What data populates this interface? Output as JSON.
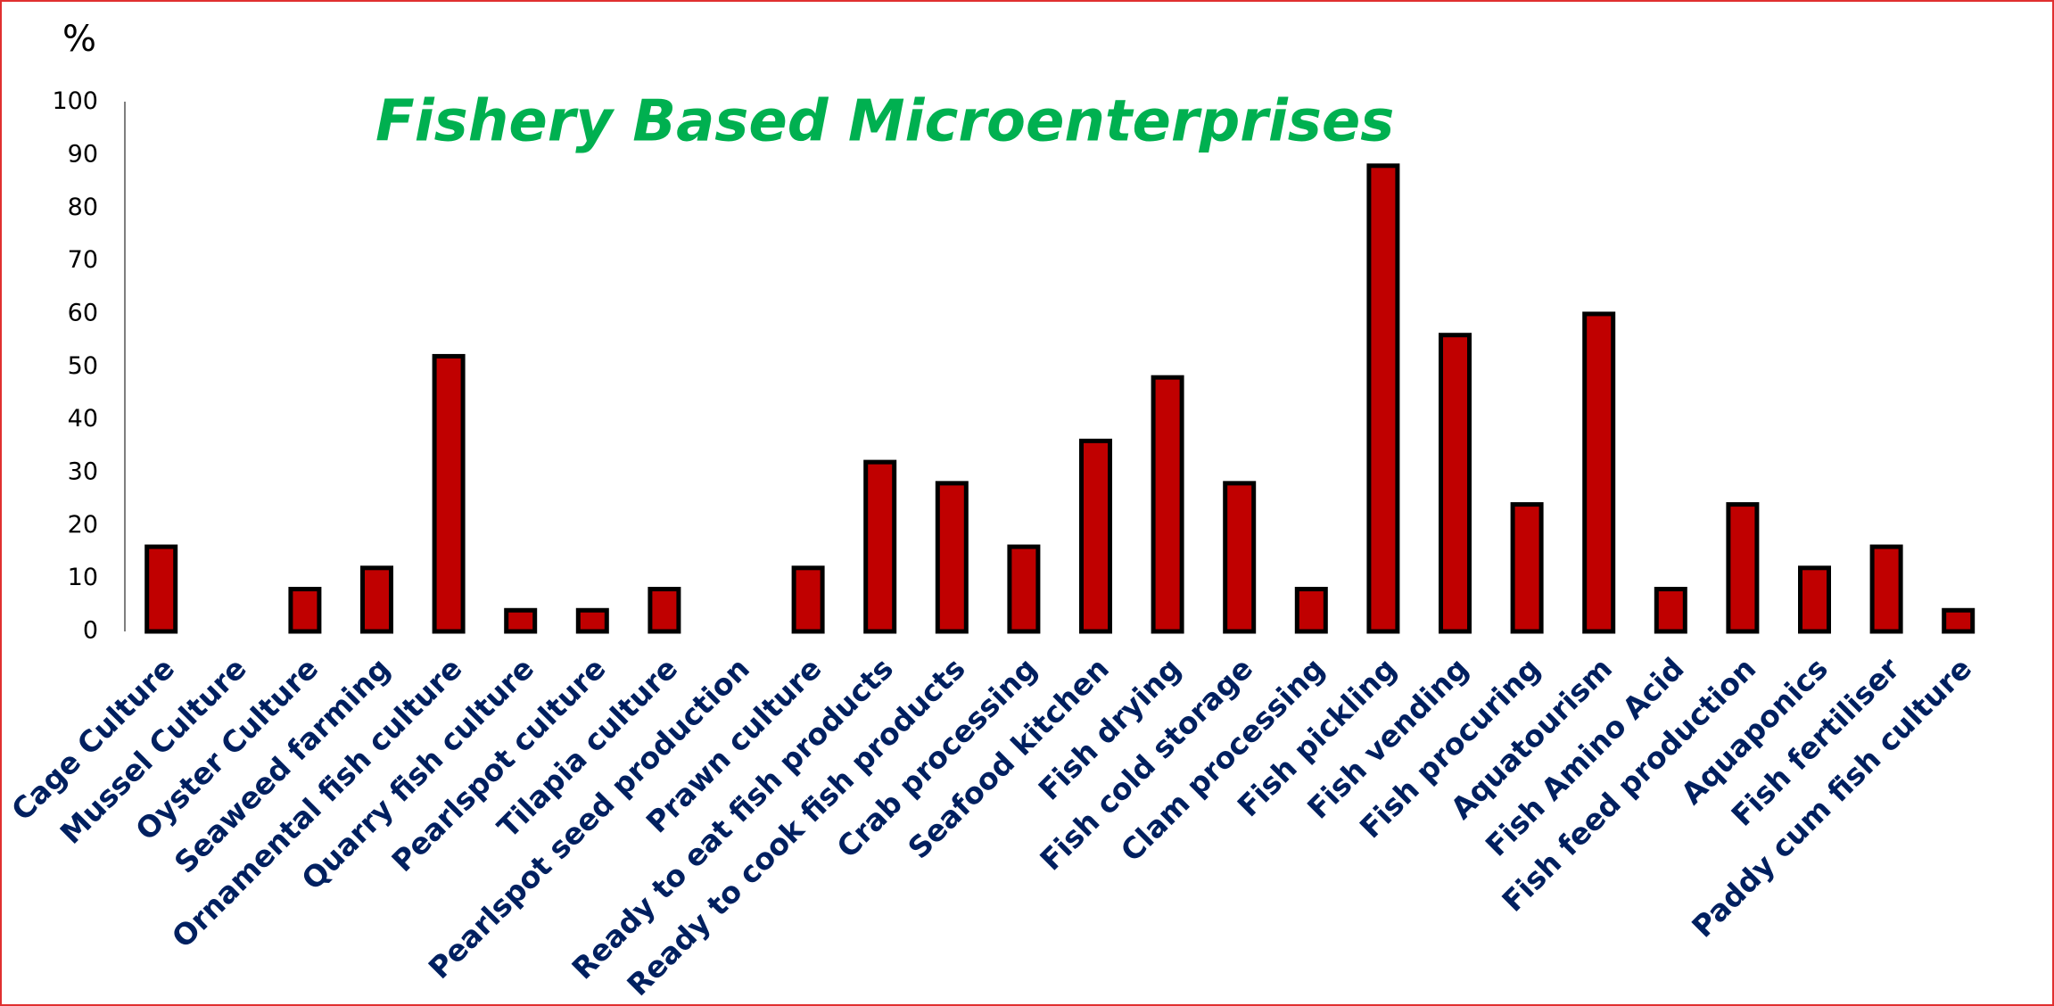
{
  "chart_data": {
    "type": "bar",
    "title": "Fishery Based  Microenterprises",
    "ylabel": "%",
    "categories": [
      "Cage Culture",
      "Mussel Culture",
      "Oyster Culture",
      "Seaweed farming",
      "Ornamental fish culture",
      "Quarry fish culture",
      "Pearlspot culture",
      "Tilapia culture",
      "Pearlspot seed production",
      "Prawn culture",
      "Ready to eat fish products",
      "Ready to cook fish products",
      "Crab processing",
      "Seafood kitchen",
      "Fish drying",
      "Fish cold storage",
      "Clam processing",
      "Fish pickling",
      "Fish vending",
      "Fish procuring",
      "Aquatourism",
      "Fish Amino Acid",
      "Fish feed production",
      "Aquaponics",
      "Fish fertiliser",
      "Paddy cum fish culture"
    ],
    "values": [
      16,
      0,
      8,
      12,
      52,
      4,
      4,
      8,
      0,
      12,
      32,
      28,
      16,
      36,
      48,
      28,
      8,
      88,
      56,
      24,
      60,
      8,
      24,
      12,
      16,
      4
    ],
    "color": "#c00000",
    "ylim": [
      0,
      100
    ],
    "yticks": [
      0,
      10,
      20,
      30,
      40,
      50,
      60,
      70,
      80,
      90,
      100
    ],
    "grid": false
  }
}
